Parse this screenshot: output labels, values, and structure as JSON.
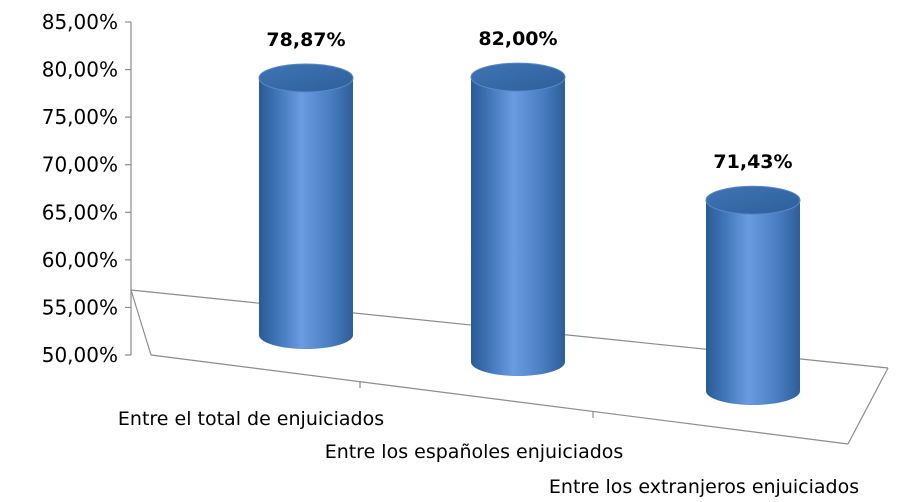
{
  "chart_data": {
    "type": "bar",
    "categories": [
      "Entre el total de enjuiciados",
      "Entre los españoles enjuiciados",
      "Entre los extranjeros enjuiciados"
    ],
    "values": [
      78.87,
      82.0,
      71.43
    ],
    "value_labels": [
      "78,87%",
      "82,00%",
      "71,43%"
    ],
    "y_ticks": [
      "50,00%",
      "55,00%",
      "60,00%",
      "65,00%",
      "70,00%",
      "75,00%",
      "80,00%",
      "85,00%"
    ],
    "ylim": [
      50,
      85
    ],
    "bar_style": "3d-cylinder",
    "bar_color": "#4F81BD",
    "grid": false
  }
}
